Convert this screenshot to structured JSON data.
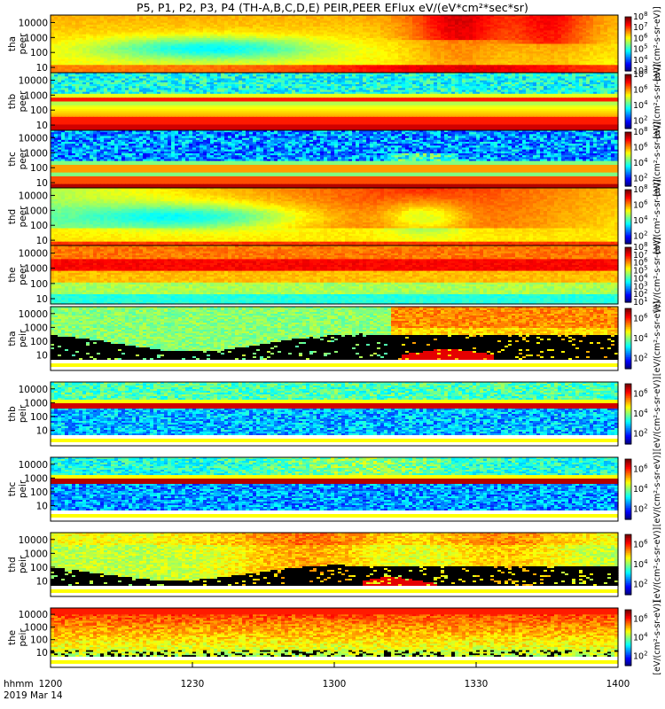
{
  "title": "P5, P1, P2, P3, P4 (TH-A,B,C,D,E) PEIR,PEER EFlux eV/(eV*cm²*sec*sr)",
  "time_axis": {
    "ticks": [
      "1200",
      "1230",
      "1300",
      "1330",
      "1400"
    ],
    "unit_label": "hhmm",
    "date_label": "2019 Mar 14"
  },
  "chart_data": {
    "type": "heatmap",
    "x": {
      "start": "1200",
      "end": "1400",
      "ticks": [
        "1200",
        "1230",
        "1300",
        "1330",
        "1400"
      ]
    },
    "y_scale": "log",
    "y_ticks": [
      "10",
      "100",
      "1000",
      "10000"
    ],
    "panels": [
      {
        "probe": "tha",
        "species": "peer",
        "style": "tha_peer",
        "cmin_exp": 3,
        "cmax_exp": 8,
        "cb_ticks": [
          3,
          4,
          5,
          6,
          7,
          8
        ]
      },
      {
        "probe": "thb",
        "species": "peer",
        "style": "thb_peer",
        "cmin_exp": 1,
        "cmax_exp": 8,
        "cb_ticks": [
          2,
          4,
          6,
          8
        ]
      },
      {
        "probe": "thc",
        "species": "peer",
        "style": "thc_peer",
        "cmin_exp": 1,
        "cmax_exp": 8,
        "cb_ticks": [
          2,
          4,
          6,
          8
        ]
      },
      {
        "probe": "thd",
        "species": "peer",
        "style": "thd_peer",
        "cmin_exp": 1,
        "cmax_exp": 8,
        "cb_ticks": [
          2,
          4,
          6,
          8
        ]
      },
      {
        "probe": "the",
        "species": "peer",
        "style": "the_peer",
        "cmin_exp": 1,
        "cmax_exp": 8,
        "cb_ticks": [
          1,
          2,
          3,
          4,
          5,
          6,
          7,
          8
        ]
      },
      {
        "probe": "tha",
        "species": "peir",
        "style": "tha_peir",
        "cmin_exp": 1,
        "cmax_exp": 7,
        "cb_ticks": [
          2,
          4,
          6
        ]
      },
      {
        "probe": "thb",
        "species": "peir",
        "style": "thb_peir",
        "cmin_exp": 1,
        "cmax_exp": 7,
        "cb_ticks": [
          2,
          4,
          6
        ]
      },
      {
        "probe": "thc",
        "species": "peir",
        "style": "thc_peir",
        "cmin_exp": 1,
        "cmax_exp": 7,
        "cb_ticks": [
          2,
          4,
          6
        ]
      },
      {
        "probe": "thd",
        "species": "peir",
        "style": "thd_peir",
        "cmin_exp": 1,
        "cmax_exp": 7,
        "cb_ticks": [
          2,
          4,
          6
        ]
      },
      {
        "probe": "the",
        "species": "peir",
        "style": "the_peir",
        "cmin_exp": 1,
        "cmax_exp": 7,
        "cb_ticks": [
          2,
          4,
          6
        ]
      }
    ],
    "colorbar_label": "[eV/(cm²-s-sr-eV)]",
    "colorbar_ticks_base": "10"
  }
}
